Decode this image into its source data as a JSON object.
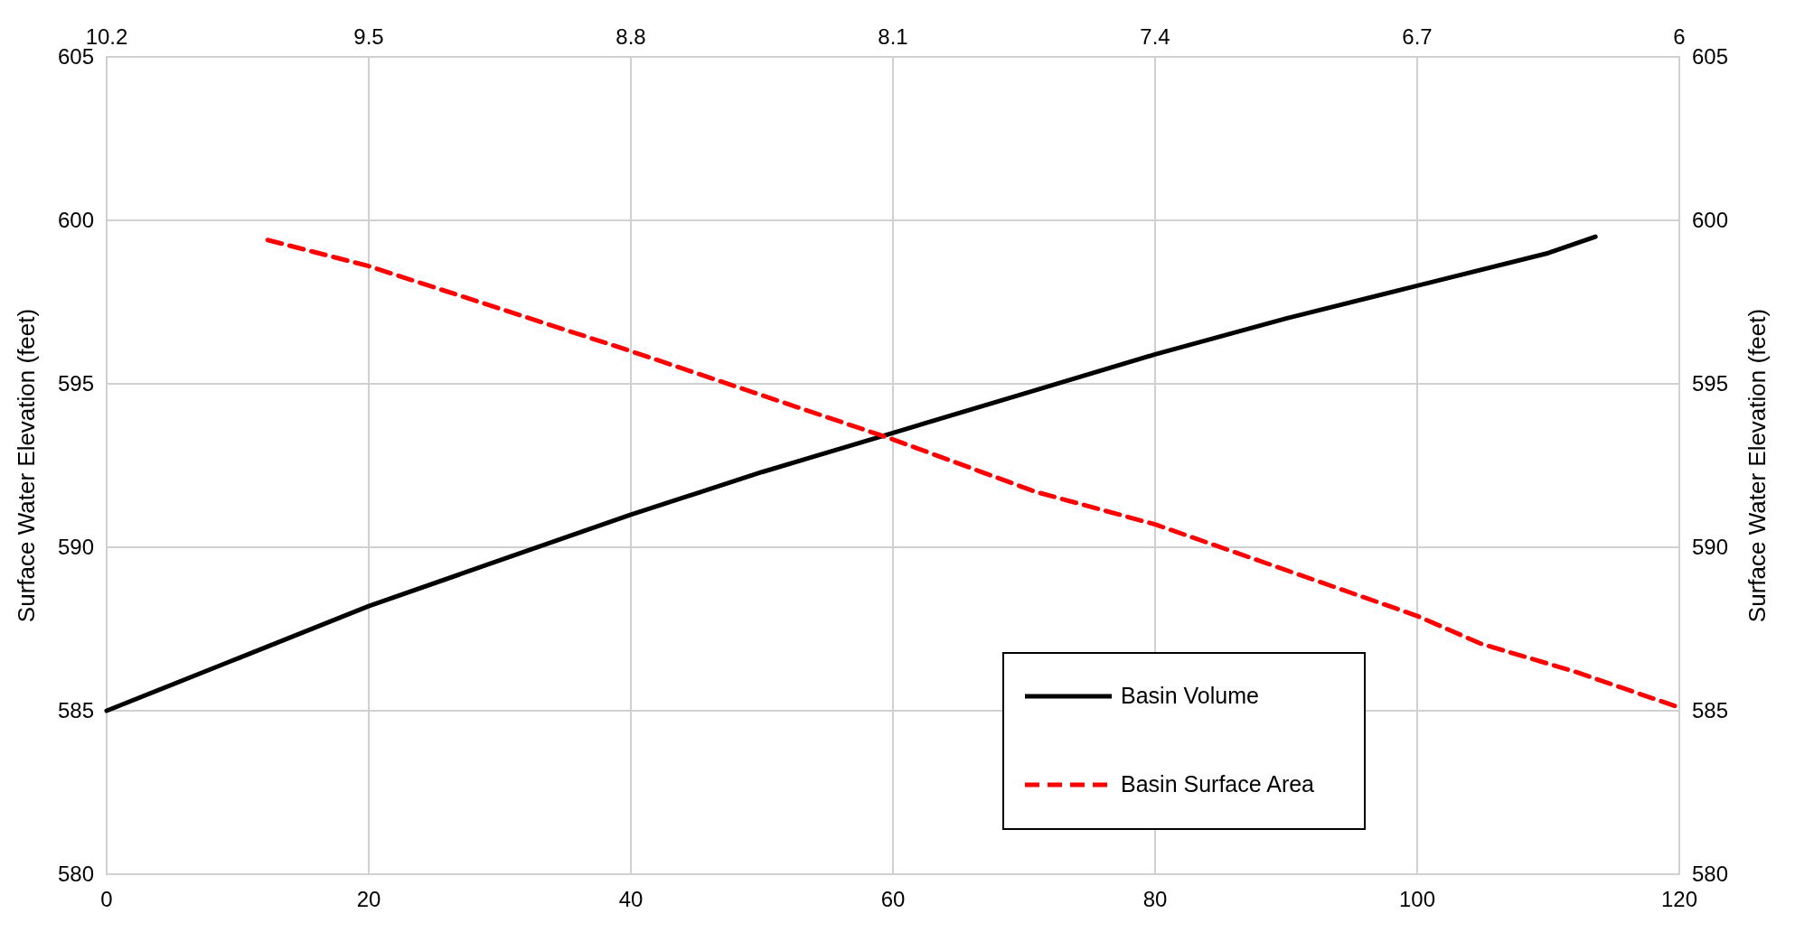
{
  "chart_data": {
    "type": "line",
    "ylabel": "Surface Water Elevation (feet)",
    "y2label": "Surface Water Elevation (feet)",
    "xlim": [
      0,
      120
    ],
    "xticks": [
      0,
      20,
      40,
      60,
      80,
      100,
      120
    ],
    "x2lim": [
      10.2,
      6
    ],
    "x2ticks": [
      10.2,
      9.5,
      8.8,
      8.1,
      7.4,
      6.7,
      6
    ],
    "ylim": [
      580,
      605
    ],
    "yticks": [
      580,
      585,
      590,
      595,
      600,
      605
    ],
    "y2lim": [
      580,
      605
    ],
    "y2ticks": [
      580,
      585,
      590,
      595,
      600,
      605
    ],
    "grid": true,
    "legend": "bottom right",
    "series": [
      {
        "name": "Basin Volume",
        "color": "#000000",
        "line_style": "solid",
        "x": [
          0,
          10,
          20,
          30,
          40,
          50,
          60,
          70,
          80,
          90,
          100,
          110,
          113.6
        ],
        "values": [
          585,
          586.6,
          588.2,
          589.6,
          591.0,
          592.3,
          593.5,
          594.7,
          595.9,
          597.0,
          598.0,
          599.0,
          599.5
        ]
      },
      {
        "name": "Basin Surface Area",
        "color": "#ff0000",
        "line_style": "dashed",
        "axis": "x2",
        "x": [
          9.77,
          9.5,
          8.8,
          8.1,
          7.72,
          7.4,
          6.7,
          6.53,
          6.28,
          6.0
        ],
        "values": [
          599.4,
          598.6,
          596.0,
          593.3,
          591.7,
          590.7,
          587.9,
          587.05,
          586.2,
          585.1
        ]
      }
    ]
  }
}
